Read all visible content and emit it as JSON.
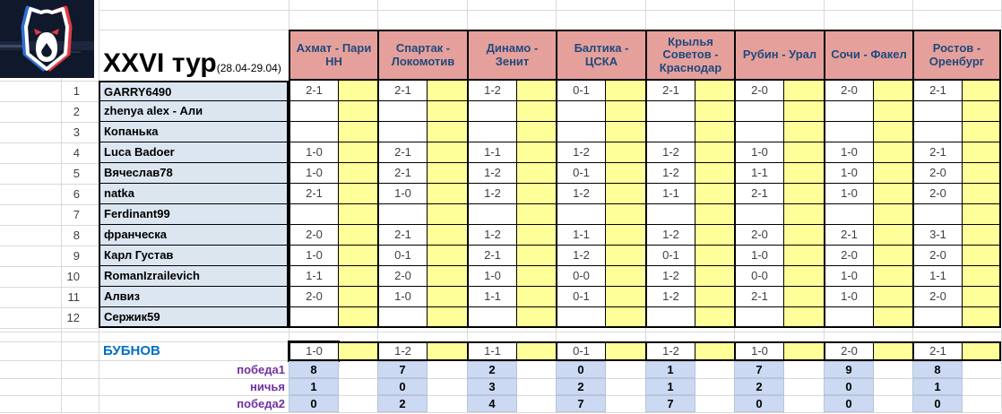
{
  "title": {
    "round": "XXVI тур",
    "dates": "(28.04-29.04)"
  },
  "matches": [
    "Ахмат - Пари НН",
    "Спартак - Локомотив",
    "Динамо - Зенит",
    "Балтика - ЦСКА",
    "Крылья Советов - Краснодар",
    "Рубин - Урал",
    "Сочи - Факел",
    "Ростов - Оренбург"
  ],
  "players": [
    {
      "num": "1",
      "name": "GARRY6490",
      "predictions": [
        "2-1",
        "2-1",
        "1-2",
        "0-1",
        "2-1",
        "2-0",
        "2-0",
        "2-1"
      ]
    },
    {
      "num": "2",
      "name": "zhenya alex - Али",
      "predictions": [
        "",
        "",
        "",
        "",
        "",
        "",
        "",
        ""
      ]
    },
    {
      "num": "3",
      "name": "Копанька",
      "predictions": [
        "",
        "",
        "",
        "",
        "",
        "",
        "",
        ""
      ]
    },
    {
      "num": "4",
      "name": "Luca Badoer",
      "predictions": [
        "1-0",
        "2-1",
        "1-1",
        "1-2",
        "1-2",
        "1-0",
        "1-0",
        "2-1"
      ]
    },
    {
      "num": "5",
      "name": "Вячеслав78",
      "predictions": [
        "1-0",
        "2-1",
        "1-2",
        "0-1",
        "1-2",
        "1-1",
        "1-0",
        "2-0"
      ]
    },
    {
      "num": "6",
      "name": "natka",
      "predictions": [
        "2-1",
        "1-0",
        "1-2",
        "1-2",
        "1-1",
        "2-1",
        "1-0",
        "2-0"
      ]
    },
    {
      "num": "7",
      "name": "Ferdinant99",
      "predictions": [
        "",
        "",
        "",
        "",
        "",
        "",
        "",
        ""
      ]
    },
    {
      "num": "8",
      "name": "франческа",
      "predictions": [
        "2-0",
        "2-1",
        "1-2",
        "1-1",
        "1-2",
        "2-0",
        "2-1",
        "3-1"
      ]
    },
    {
      "num": "9",
      "name": "Карл Густав",
      "predictions": [
        "1-0",
        "0-1",
        "2-1",
        "1-2",
        "0-1",
        "1-0",
        "2-0",
        "2-0"
      ]
    },
    {
      "num": "10",
      "name": "RomanIzrailevich",
      "predictions": [
        "1-1",
        "2-0",
        "1-0",
        "0-0",
        "1-2",
        "0-0",
        "1-0",
        "1-1"
      ]
    },
    {
      "num": "11",
      "name": "Алвиз",
      "predictions": [
        "2-0",
        "1-0",
        "1-1",
        "0-1",
        "1-2",
        "2-1",
        "1-0",
        "2-0"
      ]
    },
    {
      "num": "12",
      "name": "Сержик59",
      "predictions": [
        "",
        "",
        "",
        "",
        "",
        "",
        "",
        ""
      ]
    }
  ],
  "expert": {
    "name": "БУБНОВ",
    "predictions": [
      "1-0",
      "1-2",
      "1-1",
      "0-1",
      "1-2",
      "1-0",
      "2-0",
      "2-1"
    ]
  },
  "stats": [
    {
      "label": "победа1",
      "values": [
        "8",
        "7",
        "2",
        "0",
        "1",
        "7",
        "9",
        "8"
      ]
    },
    {
      "label": "ничья",
      "values": [
        "1",
        "0",
        "3",
        "2",
        "1",
        "2",
        "0",
        "1"
      ]
    },
    {
      "label": "победа2",
      "values": [
        "0",
        "2",
        "4",
        "7",
        "7",
        "0",
        "0",
        "0"
      ]
    }
  ],
  "colors": {
    "header_bg": "#e5a09b",
    "header_text": "#1f497d",
    "points_bg": "#ffff99",
    "name_bg": "#dce6f1",
    "stat_bg": "#cbd9f2",
    "expert_blue": "#0070c0",
    "label_purple": "#7030a0",
    "logo_bg": "#10182b",
    "logo_blue": "#2f6fd6",
    "logo_red": "#e03a43"
  }
}
